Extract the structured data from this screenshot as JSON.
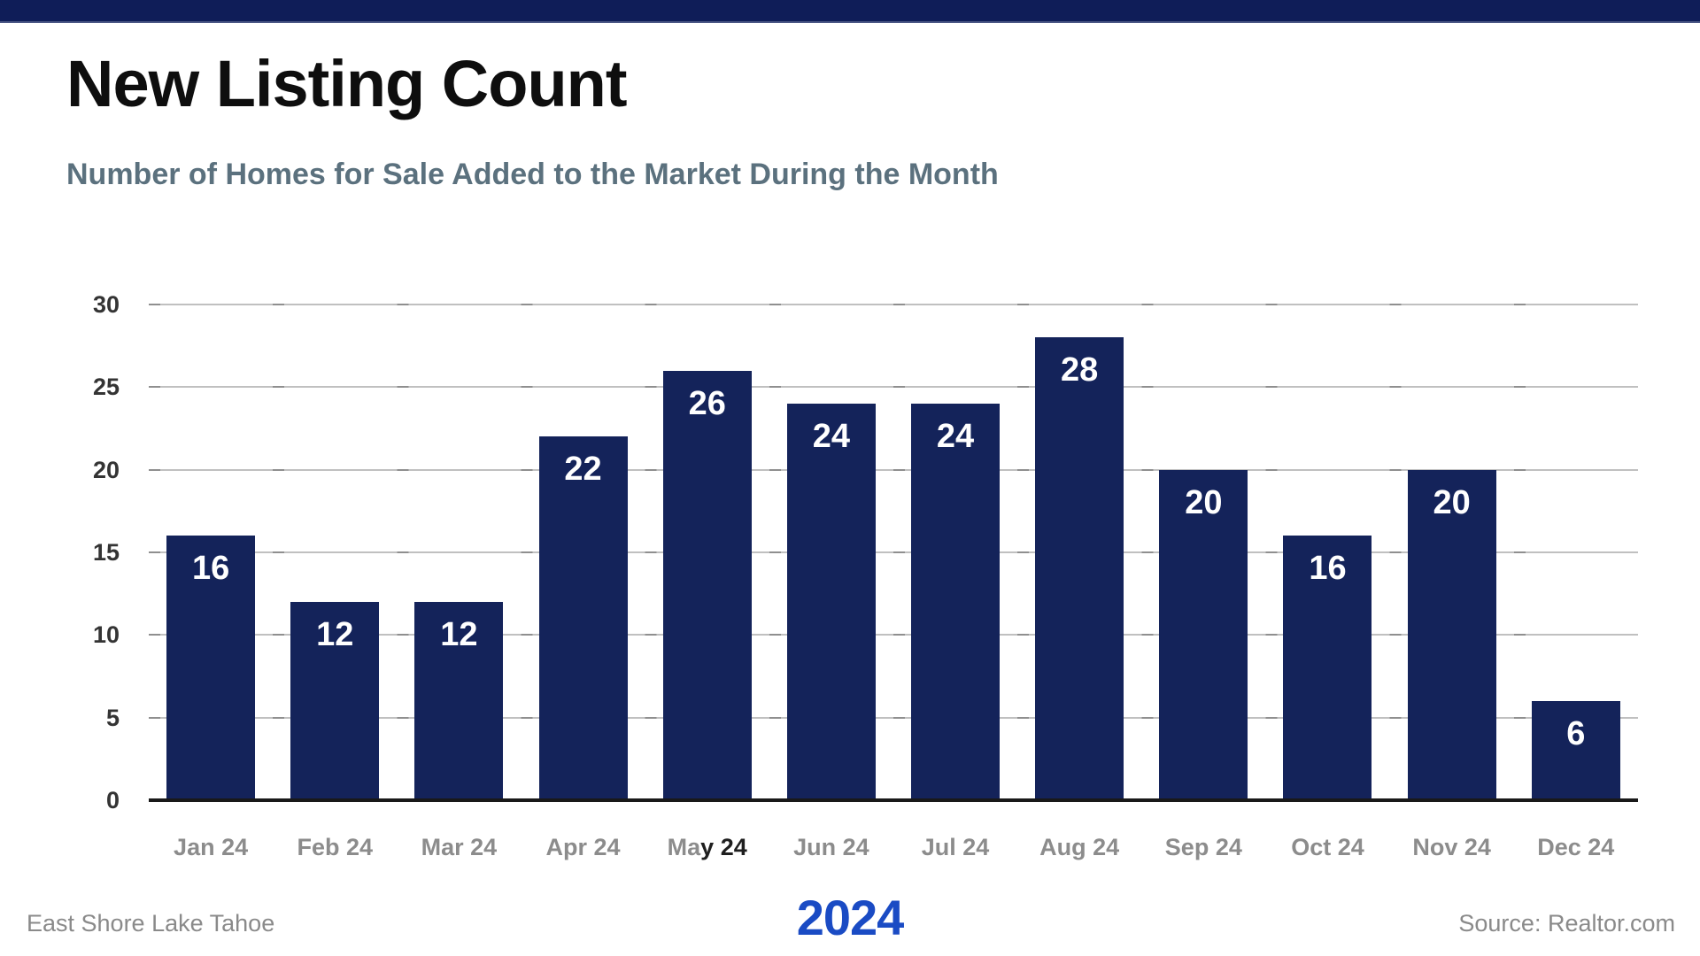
{
  "title": "New Listing Count",
  "subtitle": "Number of Homes for Sale Added to the Market During the Month",
  "accent_bar_color": "#0f1d58",
  "chart_data": {
    "type": "bar",
    "title": "New Listing Count",
    "categories": [
      "Jan 24",
      "Feb 24",
      "Mar 24",
      "Apr 24",
      "May 24",
      "Jun 24",
      "Jul 24",
      "Aug 24",
      "Sep 24",
      "Oct 24",
      "Nov 24",
      "Dec 24"
    ],
    "values": [
      16,
      12,
      12,
      22,
      26,
      24,
      24,
      28,
      20,
      16,
      20,
      6
    ],
    "xlabel": "",
    "ylabel": "",
    "ylim": [
      0,
      30
    ],
    "yticks": [
      0,
      5,
      10,
      15,
      20,
      25,
      30
    ],
    "grid": true,
    "legend": "none",
    "bar_color": "#14235a",
    "value_label_color": "#ffffff",
    "ytick_label_color": "#343434",
    "xtick_label_color": "#8c8c8c",
    "x_label_overrides": {
      "4": [
        {
          "text": "Ma",
          "color": "#8c8c8c"
        },
        {
          "text": "y 24",
          "color": "#1f1f1f"
        }
      ]
    }
  },
  "footer": {
    "left": "East Shore Lake Tahoe",
    "year": "2024",
    "year_color": "#1a4bc4",
    "right": "Source: Realtor.com"
  }
}
